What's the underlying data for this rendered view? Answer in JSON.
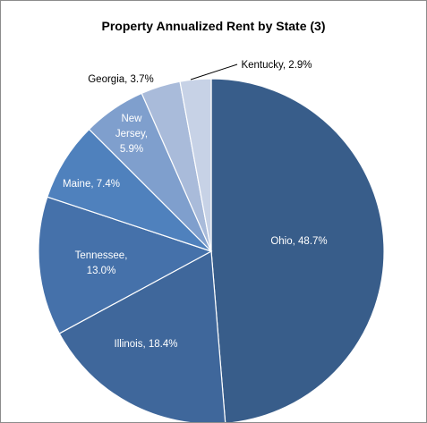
{
  "chart_data": {
    "type": "pie",
    "title": "Property Annualized Rent by State (3)",
    "slices": [
      {
        "label": "Ohio",
        "value": 48.7,
        "display": "Ohio, 48.7%",
        "color": "#385d8a",
        "text_color": "#ffffff"
      },
      {
        "label": "Illinois",
        "value": 18.4,
        "display": "Illinois, 18.4%",
        "color": "#3f679b",
        "text_color": "#ffffff"
      },
      {
        "label": "Tennessee",
        "value": 13.0,
        "display": "Tennessee, 13.0%",
        "color": "#4571aa",
        "text_color": "#ffffff"
      },
      {
        "label": "Maine",
        "value": 7.4,
        "display": "Maine, 7.4%",
        "color": "#4f81bd",
        "text_color": "#ffffff"
      },
      {
        "label": "New Jersey",
        "value": 5.9,
        "display": "New Jersey, 5.9%",
        "color": "#7f9fcd",
        "text_color": "#ffffff"
      },
      {
        "label": "Georgia",
        "value": 3.7,
        "display": "Georgia, 3.7%",
        "color": "#a9bbda",
        "text_color": "#000000"
      },
      {
        "label": "Kentucky",
        "value": 2.9,
        "display": "Kentucky, 2.9%",
        "color": "#c7d2e6",
        "text_color": "#000000"
      }
    ]
  }
}
